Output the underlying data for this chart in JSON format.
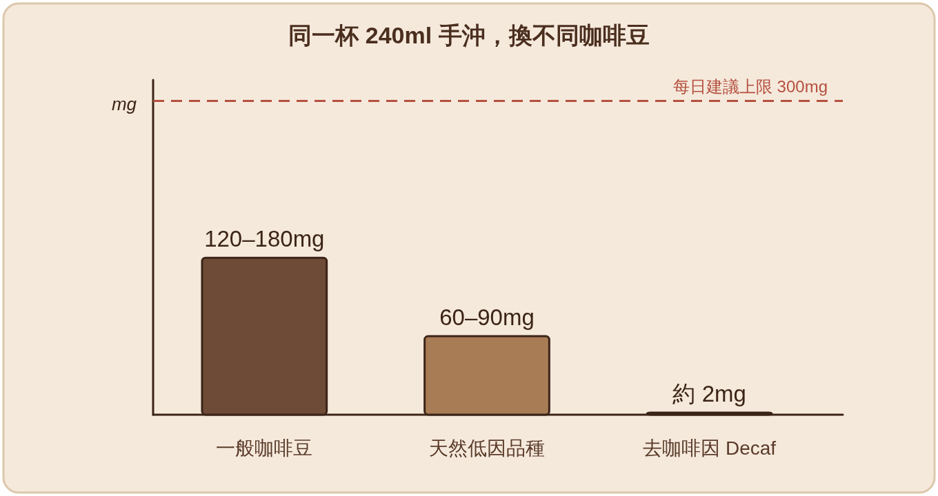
{
  "chart_data": {
    "type": "bar",
    "title": "同一杯 240ml 手沖，換不同咖啡豆",
    "ylabel": "mg",
    "categories": [
      "一般咖啡豆",
      "天然低因品種",
      "去咖啡因 Decaf"
    ],
    "values": [
      150,
      75,
      2
    ],
    "colors": [
      "#6e4b37",
      "#a87c55",
      "#dcbd8e"
    ],
    "value_labels": [
      "120–180mg",
      "60–90mg",
      "約 2mg"
    ],
    "ylim": [
      0,
      320
    ],
    "tick_labels": "x",
    "ref_lines": [
      {
        "axis": "y",
        "value": 300,
        "label": "每日建議上限 300mg",
        "color": "#b5503f",
        "line_style": "dashed"
      }
    ]
  }
}
